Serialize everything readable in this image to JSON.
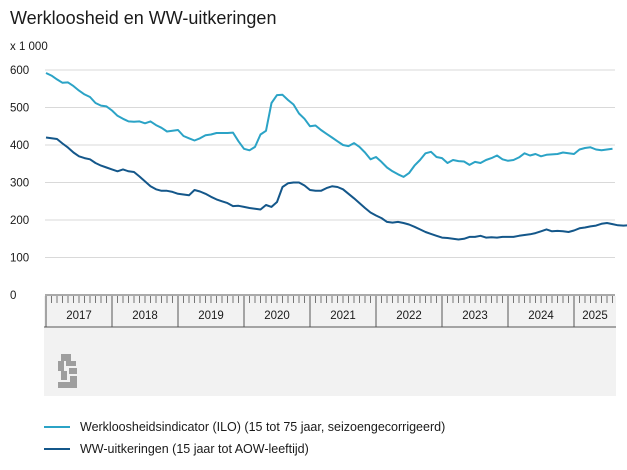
{
  "title": "Werkloosheid en WW-uitkeringen",
  "chart_data": {
    "type": "line",
    "title": "Werkloosheid en WW-uitkeringen",
    "unit_label": "x 1 000",
    "ylim": [
      0,
      600
    ],
    "yticks": [
      0,
      100,
      200,
      300,
      400,
      500,
      600
    ],
    "grid": "horizontal",
    "x_start": "2017-01",
    "year_labels": [
      "2017",
      "2018",
      "2019",
      "2020",
      "2021",
      "2022",
      "2023",
      "2024",
      "2025"
    ],
    "series": [
      {
        "name": "Werkloosheidsindicator (ILO) (15 tot 75 jaar, seizoengecorrigeerd)",
        "color": "#2ba3c6",
        "values": [
          592,
          585,
          575,
          566,
          567,
          557,
          545,
          535,
          528,
          512,
          505,
          503,
          492,
          478,
          470,
          463,
          462,
          463,
          458,
          463,
          453,
          446,
          436,
          438,
          440,
          424,
          418,
          412,
          418,
          426,
          428,
          432,
          432,
          432,
          433,
          410,
          390,
          386,
          395,
          428,
          438,
          512,
          533,
          534,
          520,
          508,
          484,
          470,
          450,
          452,
          440,
          430,
          420,
          410,
          400,
          397,
          405,
          395,
          380,
          362,
          368,
          355,
          340,
          330,
          322,
          315,
          325,
          345,
          360,
          378,
          382,
          368,
          365,
          352,
          360,
          357,
          356,
          347,
          355,
          352,
          360,
          365,
          372,
          362,
          358,
          360,
          367,
          378,
          372,
          376,
          370,
          374,
          375,
          376,
          380,
          378,
          376,
          388,
          392,
          394,
          388,
          386,
          388,
          390
        ]
      },
      {
        "name": "WW-uitkeringen (15 jaar tot AOW-leeftijd)",
        "color": "#14578a",
        "values": [
          420,
          418,
          416,
          404,
          393,
          380,
          370,
          365,
          362,
          352,
          345,
          340,
          335,
          330,
          335,
          330,
          328,
          316,
          303,
          290,
          282,
          278,
          278,
          275,
          270,
          268,
          266,
          280,
          276,
          270,
          262,
          255,
          250,
          245,
          237,
          238,
          235,
          232,
          230,
          228,
          240,
          235,
          248,
          288,
          298,
          300,
          300,
          292,
          280,
          278,
          278,
          285,
          290,
          288,
          282,
          270,
          258,
          245,
          232,
          220,
          212,
          205,
          195,
          193,
          195,
          192,
          188,
          182,
          175,
          168,
          163,
          158,
          153,
          152,
          150,
          148,
          150,
          155,
          155,
          158,
          153,
          154,
          153,
          155,
          155,
          155,
          158,
          160,
          162,
          165,
          170,
          175,
          170,
          171,
          170,
          168,
          172,
          178,
          180,
          183,
          185,
          190,
          192,
          189,
          186,
          185,
          186,
          188
        ]
      }
    ]
  },
  "logo_text": "cbs"
}
